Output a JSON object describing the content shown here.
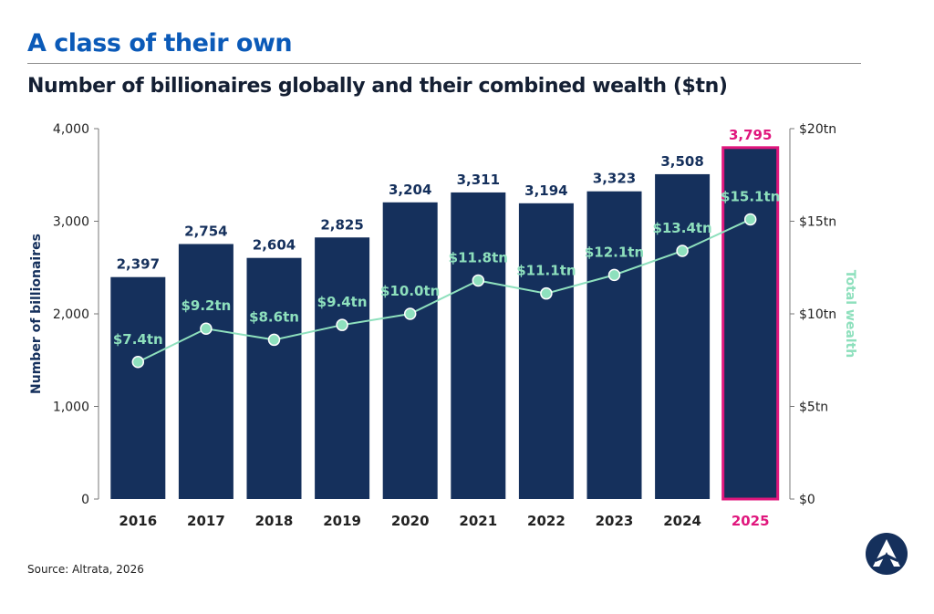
{
  "header": {
    "kicker": "A class of their own",
    "title": "Number of billionaires globally and their combined wealth ($tn)"
  },
  "footer": {
    "source": "Source: Altrata, 2026"
  },
  "colors": {
    "bar": "#15305c",
    "highlight_border": "#e0177d",
    "highlight_text": "#e0177d",
    "line": "#8ee0bd",
    "line_label": "#8ee0bd",
    "axis_text": "#222222",
    "bar_label": "#15305c",
    "logo": "#15305c"
  },
  "logo": {
    "icon": "altrata-logo-icon"
  },
  "chart_data": {
    "type": "bar",
    "categories": [
      "2016",
      "2017",
      "2018",
      "2019",
      "2020",
      "2021",
      "2022",
      "2023",
      "2024",
      "2025"
    ],
    "highlight_category": "2025",
    "series": [
      {
        "name": "Number of billionaires",
        "type": "bar",
        "axis": "left",
        "values": [
          2397,
          2754,
          2604,
          2825,
          3204,
          3311,
          3194,
          3323,
          3508,
          3795
        ],
        "labels": [
          "2,397",
          "2,754",
          "2,604",
          "2,825",
          "3,204",
          "3,311",
          "3,194",
          "3,323",
          "3,508",
          "3,795"
        ]
      },
      {
        "name": "Total wealth",
        "type": "line",
        "axis": "right",
        "values": [
          7.4,
          9.2,
          8.6,
          9.4,
          10.0,
          11.8,
          11.1,
          12.1,
          13.4,
          15.1
        ],
        "labels": [
          "$7.4tn",
          "$9.2tn",
          "$8.6tn",
          "$9.4tn",
          "$10.0tn",
          "$11.8tn",
          "$11.1tn",
          "$12.1tn",
          "$13.4tn",
          "$15.1tn"
        ]
      }
    ],
    "ylabel": "Number of billionaires",
    "ylim": [
      0,
      4000
    ],
    "yticks": [
      "0",
      "1,000",
      "2,000",
      "3,000",
      "4,000"
    ],
    "y2label": "Total wealth",
    "y2lim": [
      0,
      20
    ],
    "y2ticks": [
      "$0",
      "$5tn",
      "$10tn",
      "$15tn",
      "$20tn"
    ],
    "grid": false,
    "legend": "none"
  }
}
